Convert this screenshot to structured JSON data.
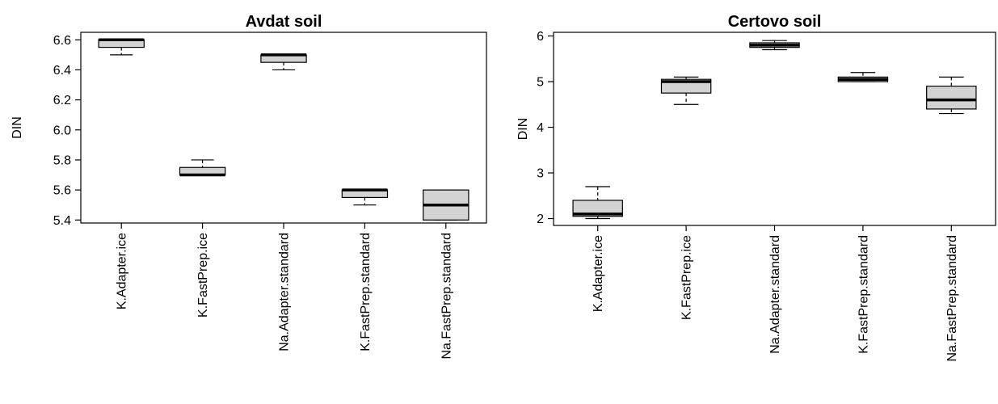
{
  "chart_data": [
    {
      "type": "boxplot",
      "title": "Avdat soil",
      "ylabel": "DIN",
      "xlabel": "",
      "ylim": [
        5.38,
        6.65
      ],
      "yticks": [
        5.4,
        5.6,
        5.8,
        6.0,
        6.2,
        6.4,
        6.6
      ],
      "ytick_labels": [
        "5.4",
        "5.6",
        "5.8",
        "6.0",
        "6.2",
        "6.4",
        "6.6"
      ],
      "grid": false,
      "box_color": "#d3d3d3",
      "categories": [
        "K.Adapter.ice",
        "K.FastPrep.ice",
        "Na.Adapter.standard",
        "K.FastPrep.standard",
        "Na.FastPrep.standard"
      ],
      "boxes": [
        {
          "min": 6.5,
          "q1": 6.55,
          "median": 6.6,
          "q3": 6.6,
          "max": 6.6
        },
        {
          "min": 5.7,
          "q1": 5.7,
          "median": 5.7,
          "q3": 5.75,
          "max": 5.8
        },
        {
          "min": 6.4,
          "q1": 6.45,
          "median": 6.5,
          "q3": 6.5,
          "max": 6.5
        },
        {
          "min": 5.5,
          "q1": 5.55,
          "median": 5.6,
          "q3": 5.6,
          "max": 5.6
        },
        {
          "min": 5.4,
          "q1": 5.4,
          "median": 5.5,
          "q3": 5.6,
          "max": 5.6
        }
      ]
    },
    {
      "type": "boxplot",
      "title": "Certovo soil",
      "ylabel": "DIN",
      "xlabel": "",
      "ylim": [
        1.85,
        6.08
      ],
      "yticks": [
        2,
        3,
        4,
        5,
        6
      ],
      "ytick_labels": [
        "2",
        "3",
        "4",
        "5",
        "6"
      ],
      "grid": false,
      "box_color": "#d3d3d3",
      "categories": [
        "K.Adapter.ice",
        "K.FastPrep.ice",
        "Na.Adapter.standard",
        "K.FastPrep.standard",
        "Na.FastPrep.standard"
      ],
      "boxes": [
        {
          "min": 2.0,
          "q1": 2.05,
          "median": 2.1,
          "q3": 2.4,
          "max": 2.7
        },
        {
          "min": 4.5,
          "q1": 4.75,
          "median": 5.0,
          "q3": 5.05,
          "max": 5.1
        },
        {
          "min": 5.7,
          "q1": 5.75,
          "median": 5.8,
          "q3": 5.85,
          "max": 5.9
        },
        {
          "min": 5.0,
          "q1": 5.0,
          "median": 5.05,
          "q3": 5.1,
          "max": 5.2
        },
        {
          "min": 4.3,
          "q1": 4.4,
          "median": 4.6,
          "q3": 4.9,
          "max": 5.1
        }
      ]
    }
  ]
}
